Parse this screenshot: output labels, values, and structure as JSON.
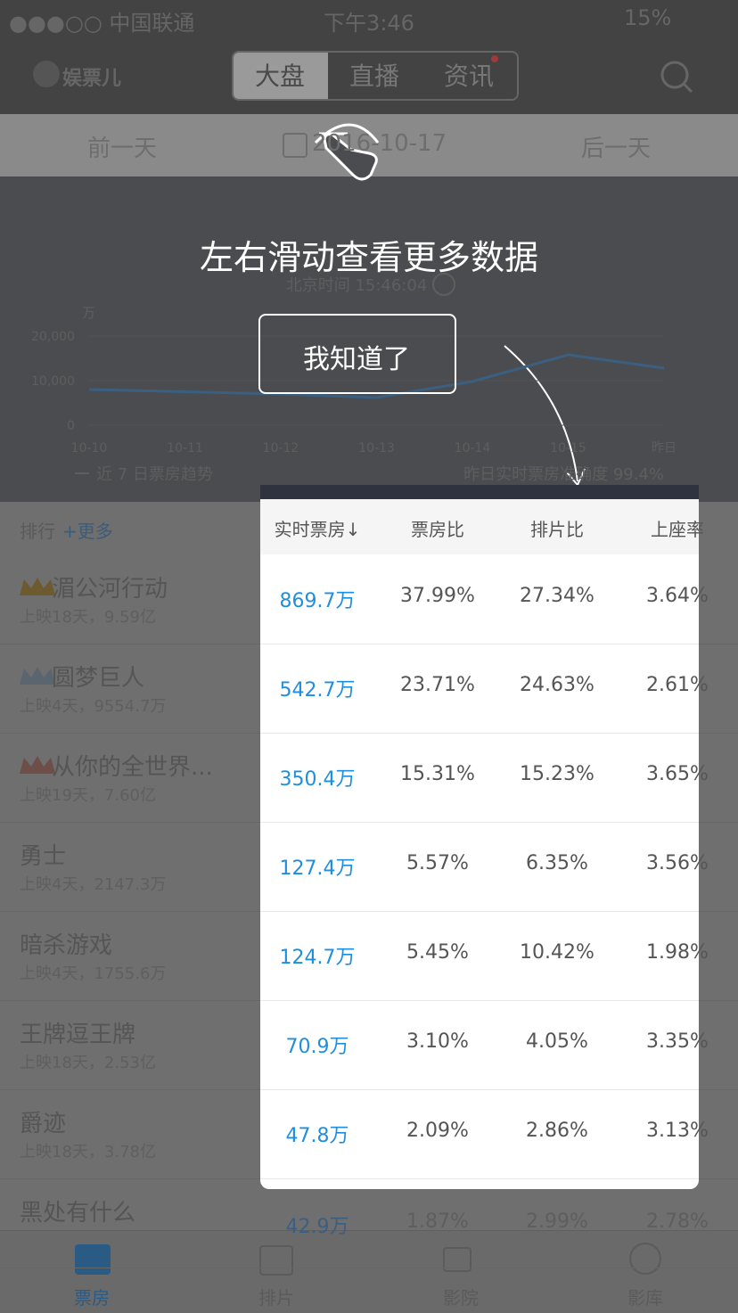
{
  "status_bar": {
    "carrier": "●●●○○ 中国联通",
    "time": "下午3:46",
    "battery": "15%"
  },
  "nav": {
    "logo": "娱票儿",
    "tabs": [
      "大盘",
      "直播",
      "资讯"
    ]
  },
  "date_bar": {
    "prev": "前一天",
    "date": "2016-10-17",
    "next": "后一天"
  },
  "summary": {
    "time": "北京时间 15:46:04"
  },
  "chart_data": {
    "type": "line",
    "unit": "万",
    "categories": [
      "10-10",
      "10-11",
      "10-12",
      "10-13",
      "10-14",
      "10-15",
      "昨日"
    ],
    "series": [
      {
        "name": "近 7 日票房趋势",
        "color": "#3b5f80",
        "values": [
          8000,
          7500,
          7000,
          6200,
          9800,
          15800,
          12800
        ]
      }
    ],
    "ylim": [
      0,
      20000
    ],
    "yticks": [
      0,
      {
        "value": 10000,
        "label": "10,000"
      },
      {
        "value": 20000,
        "label": "20,000"
      }
    ],
    "annotation": "昨日实时票房准确度 99.4%"
  },
  "overlay": {
    "hint": "左右滑动查看更多数据",
    "button": "我知道了"
  },
  "ranking": {
    "title": "排行",
    "more": "+更多",
    "movies": [
      {
        "name": "湄公河行动",
        "info": "上映18天，9.59亿"
      },
      {
        "name": "圆梦巨人",
        "info": "上映4天，9554.7万"
      },
      {
        "name": "从你的全世界...",
        "info": "上映19天，7.60亿"
      },
      {
        "name": "勇士",
        "info": "上映4天，2147.3万"
      },
      {
        "name": "暗杀游戏",
        "info": "上映4天，1755.6万"
      },
      {
        "name": "王牌逗王牌",
        "info": "上映18天，2.53亿"
      },
      {
        "name": "爵迹",
        "info": "上映18天，3.78亿"
      },
      {
        "name": "黑处有什么"
      }
    ]
  },
  "table": {
    "columns": [
      "实时票房↓",
      "票房比",
      "排片比",
      "上座率"
    ],
    "rows": [
      [
        "869.7万",
        "37.99%",
        "27.34%",
        "3.64%"
      ],
      [
        "542.7万",
        "23.71%",
        "24.63%",
        "2.61%"
      ],
      [
        "350.4万",
        "15.31%",
        "15.23%",
        "3.65%"
      ],
      [
        "127.4万",
        "5.57%",
        "6.35%",
        "3.56%"
      ],
      [
        "124.7万",
        "5.45%",
        "10.42%",
        "1.98%"
      ],
      [
        "70.9万",
        "3.10%",
        "4.05%",
        "3.35%"
      ],
      [
        "47.8万",
        "2.09%",
        "2.86%",
        "3.13%"
      ],
      [
        "42.9万",
        "1.87%",
        "2.99%",
        "2.78%"
      ]
    ]
  },
  "tabbar": [
    "票房",
    "排片",
    "影院",
    "影库"
  ]
}
